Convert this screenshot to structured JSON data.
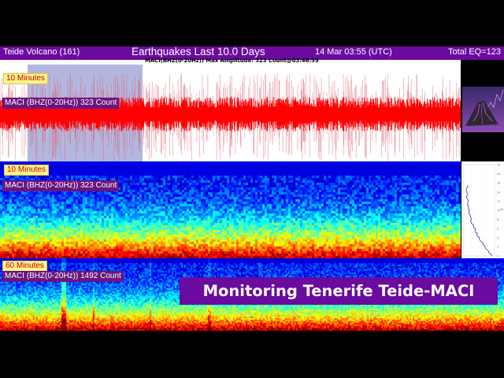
{
  "header": {
    "station": "Teide Volcano (161)",
    "title": "Earthquakes Last 10.0 Days",
    "time": "14 Mar 03:55 (UTC)",
    "total": "Total EQ=123",
    "bg_color": "#6c0aa0"
  },
  "subtitle": "MACI(BHZ(0-20Hz)) Max Amplitude: 323 Count@03:46:59",
  "panels": [
    {
      "type": "waveform",
      "window_label": "10 Minutes",
      "channel_label": "MACI (BHZ(0-20Hz)) 323 Count",
      "trace_color": "#ff0000",
      "highlight_color": "#b3b7e0"
    },
    {
      "type": "spectrogram",
      "window_label": "10 Minutes",
      "channel_label": "MACI (BHZ(0-20Hz)) 323 Count"
    },
    {
      "type": "spectrogram",
      "window_label": "60 Minutes",
      "channel_label": "MACI (BHZ(0-20Hz)) 1492 Count"
    }
  ],
  "frequency_profile": {
    "axis_ticks": [
      "20",
      "18",
      "16",
      "14",
      "12",
      "10",
      "8",
      "6",
      "4",
      "2",
      "0"
    ],
    "axis_unit": "Hz",
    "line_color": "#5a2a8a"
  },
  "thumbnail": {
    "icon": "volcano-icon"
  },
  "banner": {
    "text": "Monitoring Tenerife Teide-MACI",
    "bg_color": "#6a0a9e"
  }
}
